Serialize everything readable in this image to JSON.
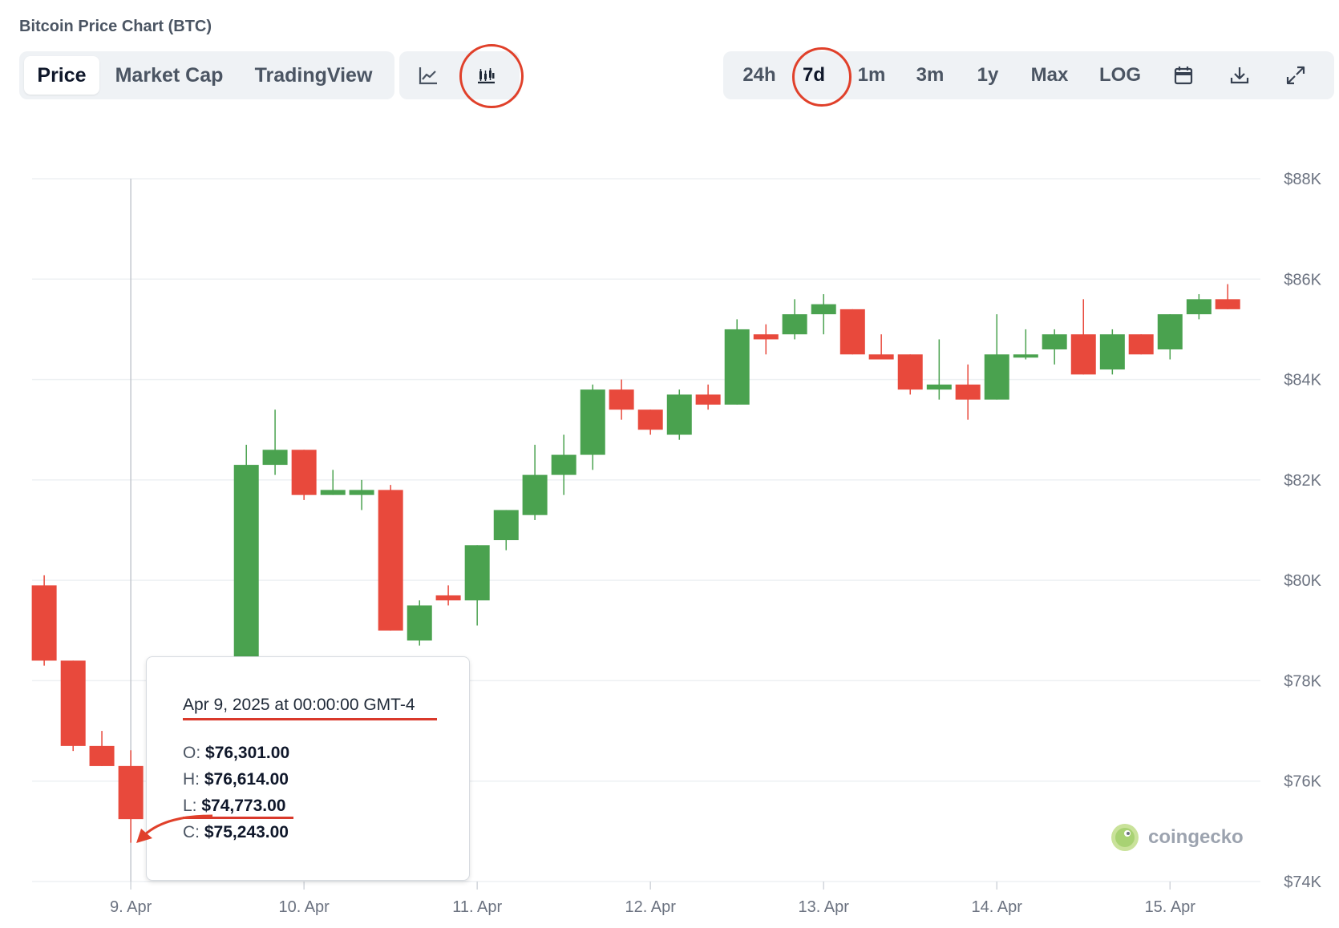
{
  "page_title": "Bitcoin Price Chart (BTC)",
  "tabs": [
    {
      "label": "Price",
      "active": true
    },
    {
      "label": "Market Cap",
      "active": false
    },
    {
      "label": "TradingView",
      "active": false
    }
  ],
  "chart_type_buttons": [
    {
      "icon": "line-chart-icon",
      "active": false
    },
    {
      "icon": "candlestick-chart-icon",
      "active": true
    }
  ],
  "ranges": [
    {
      "label": "24h",
      "active": false
    },
    {
      "label": "7d",
      "active": true
    },
    {
      "label": "1m",
      "active": false
    },
    {
      "label": "3m",
      "active": false
    },
    {
      "label": "1y",
      "active": false
    },
    {
      "label": "Max",
      "active": false
    },
    {
      "label": "LOG",
      "active": false
    }
  ],
  "tool_icons": [
    "calendar-icon",
    "download-icon",
    "expand-icon"
  ],
  "tooltip": {
    "date": "Apr 9, 2025 at 00:00:00 GMT-4",
    "o_label": "O:",
    "o_value": "$76,301.00",
    "h_label": "H:",
    "h_value": "$76,614.00",
    "l_label": "L:",
    "l_value": "$74,773.00",
    "c_label": "C:",
    "c_value": "$75,243.00"
  },
  "watermark": "coingecko",
  "colors": {
    "up": "#4aa24f",
    "down": "#e8493c",
    "annotation": "#e0402a"
  },
  "chart_data": {
    "type": "candlestick",
    "y_ticks": [
      "$74K",
      "$76K",
      "$78K",
      "$80K",
      "$82K",
      "$84K",
      "$86K",
      "$88K"
    ],
    "y_tick_values": [
      74000,
      76000,
      78000,
      80000,
      82000,
      84000,
      86000,
      88000
    ],
    "ylim": [
      74000,
      88000
    ],
    "x_ticks": [
      "9. Apr",
      "10. Apr",
      "11. Apr",
      "12. Apr",
      "13. Apr",
      "14. Apr",
      "15. Apr"
    ],
    "x_tick_values": [
      9,
      10,
      11,
      12,
      13,
      14,
      15
    ],
    "xlim": [
      8.43,
      15.42
    ],
    "crosshair_x": 9,
    "candles": [
      {
        "t": 8.5,
        "o": 79900,
        "h": 80100,
        "l": 78300,
        "c": 78400
      },
      {
        "t": 8.667,
        "o": 78400,
        "h": 78400,
        "l": 76600,
        "c": 76700
      },
      {
        "t": 8.833,
        "o": 76700,
        "h": 77000,
        "l": 76300,
        "c": 76300
      },
      {
        "t": 9.0,
        "o": 76301,
        "h": 76614,
        "l": 74773,
        "c": 75243
      },
      {
        "t": 9.667,
        "o": 77800,
        "h": 82700,
        "l": 77600,
        "c": 82300
      },
      {
        "t": 9.833,
        "o": 82300,
        "h": 83400,
        "l": 82100,
        "c": 82600
      },
      {
        "t": 10.0,
        "o": 82600,
        "h": 82600,
        "l": 81600,
        "c": 81700
      },
      {
        "t": 10.167,
        "o": 81700,
        "h": 82200,
        "l": 81700,
        "c": 81800
      },
      {
        "t": 10.333,
        "o": 81700,
        "h": 82000,
        "l": 81400,
        "c": 81800
      },
      {
        "t": 10.5,
        "o": 81800,
        "h": 81900,
        "l": 79000,
        "c": 79000
      },
      {
        "t": 10.667,
        "o": 78800,
        "h": 79600,
        "l": 78700,
        "c": 79500
      },
      {
        "t": 10.833,
        "o": 79700,
        "h": 79900,
        "l": 79500,
        "c": 79600
      },
      {
        "t": 11.0,
        "o": 79600,
        "h": 80700,
        "l": 79100,
        "c": 80700
      },
      {
        "t": 11.167,
        "o": 80800,
        "h": 81400,
        "l": 80600,
        "c": 81400
      },
      {
        "t": 11.333,
        "o": 81300,
        "h": 82700,
        "l": 81200,
        "c": 82100
      },
      {
        "t": 11.5,
        "o": 82100,
        "h": 82900,
        "l": 81700,
        "c": 82500
      },
      {
        "t": 11.667,
        "o": 82500,
        "h": 83900,
        "l": 82200,
        "c": 83800
      },
      {
        "t": 11.833,
        "o": 83800,
        "h": 84000,
        "l": 83200,
        "c": 83400
      },
      {
        "t": 12.0,
        "o": 83400,
        "h": 83400,
        "l": 82900,
        "c": 83000
      },
      {
        "t": 12.167,
        "o": 82900,
        "h": 83800,
        "l": 82800,
        "c": 83700
      },
      {
        "t": 12.333,
        "o": 83700,
        "h": 83900,
        "l": 83400,
        "c": 83500
      },
      {
        "t": 12.5,
        "o": 83500,
        "h": 85200,
        "l": 83500,
        "c": 85000
      },
      {
        "t": 12.667,
        "o": 84900,
        "h": 85100,
        "l": 84500,
        "c": 84800
      },
      {
        "t": 12.833,
        "o": 84900,
        "h": 85600,
        "l": 84800,
        "c": 85300
      },
      {
        "t": 13.0,
        "o": 85300,
        "h": 85700,
        "l": 84900,
        "c": 85500
      },
      {
        "t": 13.167,
        "o": 85400,
        "h": 85400,
        "l": 84500,
        "c": 84500
      },
      {
        "t": 13.333,
        "o": 84500,
        "h": 84900,
        "l": 84400,
        "c": 84400
      },
      {
        "t": 13.5,
        "o": 84500,
        "h": 84500,
        "l": 83700,
        "c": 83800
      },
      {
        "t": 13.667,
        "o": 83800,
        "h": 84800,
        "l": 83600,
        "c": 83900
      },
      {
        "t": 13.833,
        "o": 83900,
        "h": 84300,
        "l": 83200,
        "c": 83600
      },
      {
        "t": 14.0,
        "o": 83600,
        "h": 85300,
        "l": 83600,
        "c": 84500
      },
      {
        "t": 14.167,
        "o": 84500,
        "h": 85000,
        "l": 84400,
        "c": 84500
      },
      {
        "t": 14.333,
        "o": 84600,
        "h": 85000,
        "l": 84300,
        "c": 84900
      },
      {
        "t": 14.5,
        "o": 84900,
        "h": 85600,
        "l": 84100,
        "c": 84100
      },
      {
        "t": 14.667,
        "o": 84200,
        "h": 85000,
        "l": 84100,
        "c": 84900
      },
      {
        "t": 14.833,
        "o": 84900,
        "h": 84900,
        "l": 84500,
        "c": 84500
      },
      {
        "t": 15.0,
        "o": 84600,
        "h": 85300,
        "l": 84400,
        "c": 85300
      },
      {
        "t": 15.167,
        "o": 85300,
        "h": 85700,
        "l": 85200,
        "c": 85600
      },
      {
        "t": 15.333,
        "o": 85600,
        "h": 85900,
        "l": 85400,
        "c": 85400
      }
    ]
  }
}
